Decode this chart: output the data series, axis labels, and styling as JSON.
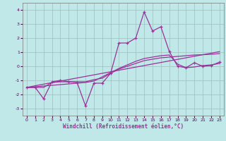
{
  "title": "",
  "xlabel": "Windchill (Refroidissement éolien,°C)",
  "ylabel": "",
  "background_color": "#c0e8e8",
  "line_color": "#993399",
  "grid_color": "#9dbfbf",
  "hours": [
    0,
    1,
    2,
    3,
    4,
    5,
    6,
    7,
    8,
    9,
    10,
    11,
    12,
    13,
    14,
    15,
    16,
    17,
    18,
    19,
    20,
    21,
    22,
    23
  ],
  "windchill": [
    -1.5,
    -1.5,
    -2.3,
    -1.1,
    -1.0,
    -1.1,
    -1.15,
    -2.8,
    -1.2,
    -1.2,
    -0.5,
    1.65,
    1.65,
    2.0,
    3.85,
    2.5,
    2.8,
    1.05,
    0.0,
    -0.1,
    0.25,
    0.0,
    0.05,
    0.3
  ],
  "line2": [
    -1.5,
    -1.5,
    -1.5,
    -1.15,
    -1.1,
    -1.1,
    -1.1,
    -1.1,
    -0.95,
    -0.85,
    -0.5,
    -0.2,
    0.0,
    0.2,
    0.4,
    0.5,
    0.6,
    0.65,
    0.7,
    0.75,
    0.8,
    0.82,
    0.85,
    0.9
  ],
  "line3": [
    -1.5,
    -1.45,
    -1.4,
    -1.35,
    -1.3,
    -1.25,
    -1.2,
    -1.15,
    -1.05,
    -0.75,
    -0.45,
    -0.15,
    0.1,
    0.35,
    0.55,
    0.65,
    0.75,
    0.8,
    0.15,
    -0.1,
    -0.05,
    0.05,
    0.1,
    0.2
  ],
  "line4": [
    -1.5,
    -1.38,
    -1.27,
    -1.16,
    -1.05,
    -0.94,
    -0.83,
    -0.72,
    -0.61,
    -0.5,
    -0.39,
    -0.28,
    -0.17,
    -0.06,
    0.05,
    0.16,
    0.27,
    0.38,
    0.49,
    0.6,
    0.71,
    0.82,
    0.93,
    1.04
  ],
  "xlim": [
    -0.5,
    23.5
  ],
  "ylim": [
    -3.5,
    4.5
  ],
  "yticks": [
    -3,
    -2,
    -1,
    0,
    1,
    2,
    3,
    4
  ],
  "xticks": [
    0,
    1,
    2,
    3,
    4,
    5,
    6,
    7,
    8,
    9,
    10,
    11,
    12,
    13,
    14,
    15,
    16,
    17,
    18,
    19,
    20,
    21,
    22,
    23
  ]
}
